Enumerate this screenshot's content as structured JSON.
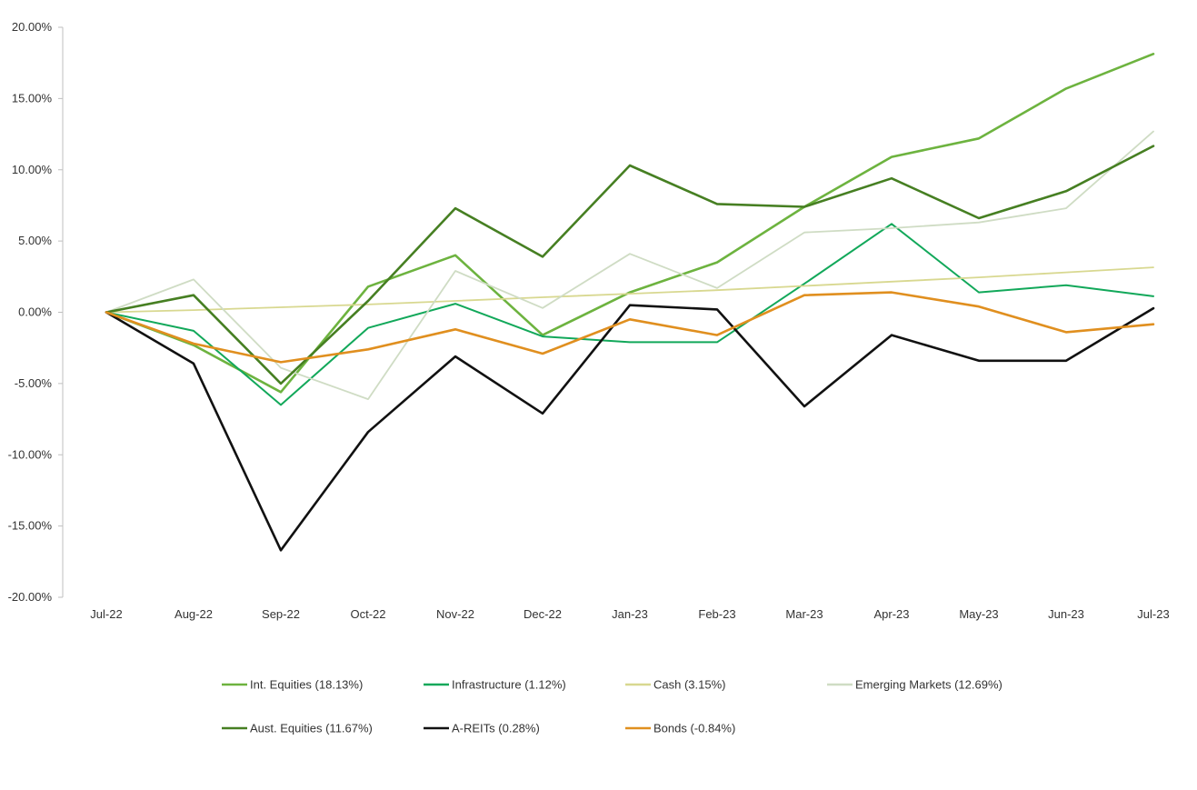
{
  "chart_data": {
    "type": "line",
    "title": "",
    "xlabel": "",
    "ylabel": "",
    "ylim": [
      -20,
      20
    ],
    "y_ticks": [
      20,
      15,
      10,
      5,
      0,
      -5,
      -10,
      -15,
      -20
    ],
    "y_tick_labels": [
      "20.00%",
      "15.00%",
      "10.00%",
      "5.00%",
      "0.00%",
      "-5.00%",
      "-10.00%",
      "-15.00%",
      "-20.00%"
    ],
    "categories": [
      "Jul-22",
      "Aug-22",
      "Sep-22",
      "Oct-22",
      "Nov-22",
      "Dec-22",
      "Jan-23",
      "Feb-23",
      "Mar-23",
      "Apr-23",
      "May-23",
      "Jun-23",
      "Jul-23"
    ],
    "grid": false,
    "legend_position": "bottom",
    "series": [
      {
        "name": "Int. Equities (18.13%)",
        "color": "#6db33f",
        "width": 2.6,
        "values": [
          0,
          -2.3,
          -5.6,
          1.8,
          4.0,
          -1.6,
          1.4,
          3.5,
          7.4,
          10.9,
          12.2,
          15.7,
          18.13
        ]
      },
      {
        "name": "Infrastructure (1.12%)",
        "color": "#12a85a",
        "width": 2.0,
        "values": [
          0,
          -1.3,
          -6.5,
          -1.1,
          0.6,
          -1.7,
          -2.1,
          -2.1,
          2.0,
          6.2,
          1.4,
          1.9,
          1.12
        ]
      },
      {
        "name": "Cash (3.15%)",
        "color": "#d8d890",
        "width": 1.8,
        "values": [
          0,
          0.15,
          0.35,
          0.55,
          0.8,
          1.05,
          1.3,
          1.55,
          1.85,
          2.15,
          2.45,
          2.8,
          3.15
        ]
      },
      {
        "name": "Emerging Markets (12.69%)",
        "color": "#cfdcc4",
        "width": 1.8,
        "values": [
          0,
          2.3,
          -3.9,
          -6.1,
          2.9,
          0.3,
          4.1,
          1.7,
          5.6,
          5.9,
          6.3,
          7.3,
          12.69
        ]
      },
      {
        "name": "Aust. Equities (11.67%)",
        "color": "#467f22",
        "width": 2.6,
        "values": [
          0,
          1.2,
          -5.0,
          0.8,
          7.3,
          3.9,
          10.3,
          7.6,
          7.4,
          9.4,
          6.6,
          8.5,
          11.67
        ]
      },
      {
        "name": "A-REITs (0.28%)",
        "color": "#111111",
        "width": 2.6,
        "values": [
          0,
          -3.6,
          -16.7,
          -8.4,
          -3.1,
          -7.1,
          0.5,
          0.2,
          -6.6,
          -1.6,
          -3.4,
          -3.4,
          0.28
        ]
      },
      {
        "name": "Bonds (-0.84%)",
        "color": "#e08f1f",
        "width": 2.6,
        "values": [
          0,
          -2.2,
          -3.5,
          -2.6,
          -1.2,
          -2.9,
          -0.5,
          -1.6,
          1.2,
          1.4,
          0.4,
          -1.4,
          -0.84
        ]
      }
    ]
  }
}
